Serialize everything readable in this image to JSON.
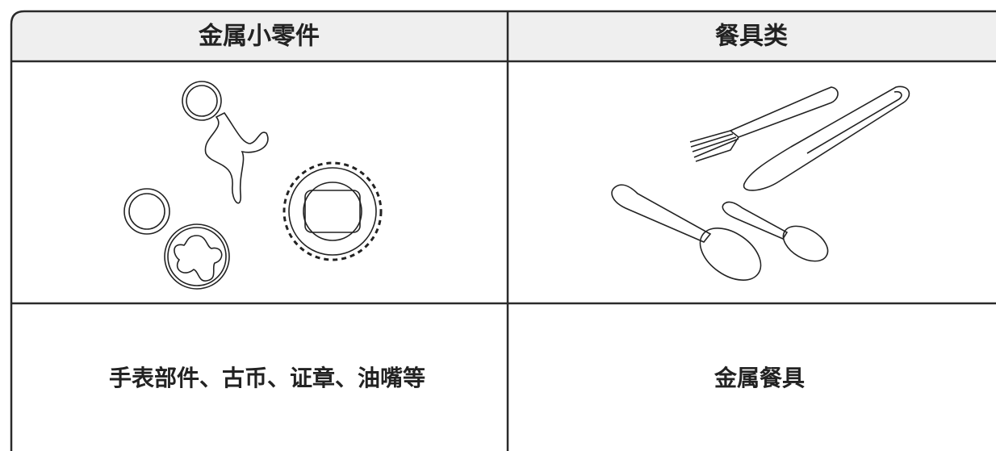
{
  "table": {
    "headers": [
      "金属小零件",
      "餐具类"
    ],
    "rows": [
      [
        "手表部件、古币、证章、油嘴等",
        "金属餐具"
      ]
    ]
  }
}
